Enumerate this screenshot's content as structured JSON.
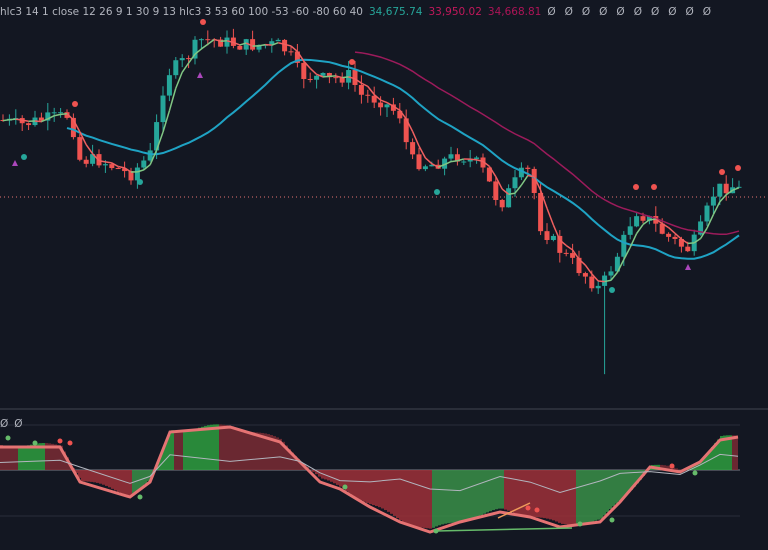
{
  "header": {
    "indicator": "hlc3 14 1 close 12 26 9 1 30 9 13 hlc3 3 53 60 100 -53 -60 -80 60 40",
    "value_1": "34,675.74",
    "value_2": "33,950.02",
    "value_3": "34,668.81",
    "flags": [
      "Ø",
      "Ø",
      "Ø",
      "Ø",
      "Ø",
      "Ø",
      "Ø",
      "Ø",
      "Ø",
      "Ø"
    ]
  },
  "oscillator_header": {
    "flags": [
      "Ø",
      "Ø"
    ]
  }
}
